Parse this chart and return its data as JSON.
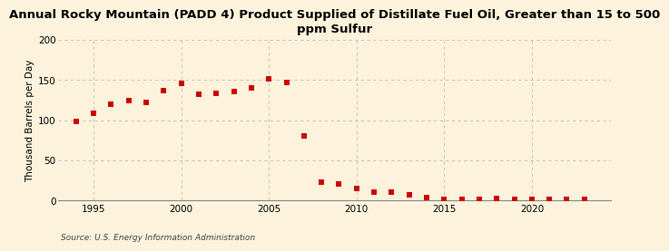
{
  "title": "Annual Rocky Mountain (PADD 4) Product Supplied of Distillate Fuel Oil, Greater than 15 to 500\nppm Sulfur",
  "ylabel": "Thousand Barrels per Day",
  "source": "Source: U.S. Energy Information Administration",
  "years": [
    1994,
    1995,
    1996,
    1997,
    1998,
    1999,
    2000,
    2001,
    2002,
    2003,
    2004,
    2005,
    2006,
    2007,
    2008,
    2009,
    2010,
    2011,
    2012,
    2013,
    2014,
    2015,
    2016,
    2017,
    2018,
    2019,
    2020,
    2021,
    2022,
    2023
  ],
  "values": [
    99,
    109,
    120,
    125,
    122,
    137,
    146,
    132,
    134,
    136,
    140,
    152,
    147,
    81,
    23,
    21,
    15,
    10,
    10,
    7,
    4,
    2,
    1,
    1,
    3,
    2,
    1,
    1,
    1,
    2
  ],
  "marker_color": "#cc0000",
  "marker_size": 4,
  "ylim": [
    0,
    200
  ],
  "yticks": [
    0,
    50,
    100,
    150,
    200
  ],
  "xlim": [
    1993.0,
    2024.5
  ],
  "xticks": [
    1995,
    2000,
    2005,
    2010,
    2015,
    2020
  ],
  "bg_color": "#fdf3dc",
  "grid_color": "#bbbbbb",
  "title_fontsize": 9.5,
  "label_fontsize": 7.5,
  "tick_fontsize": 7.5,
  "source_fontsize": 6.5
}
